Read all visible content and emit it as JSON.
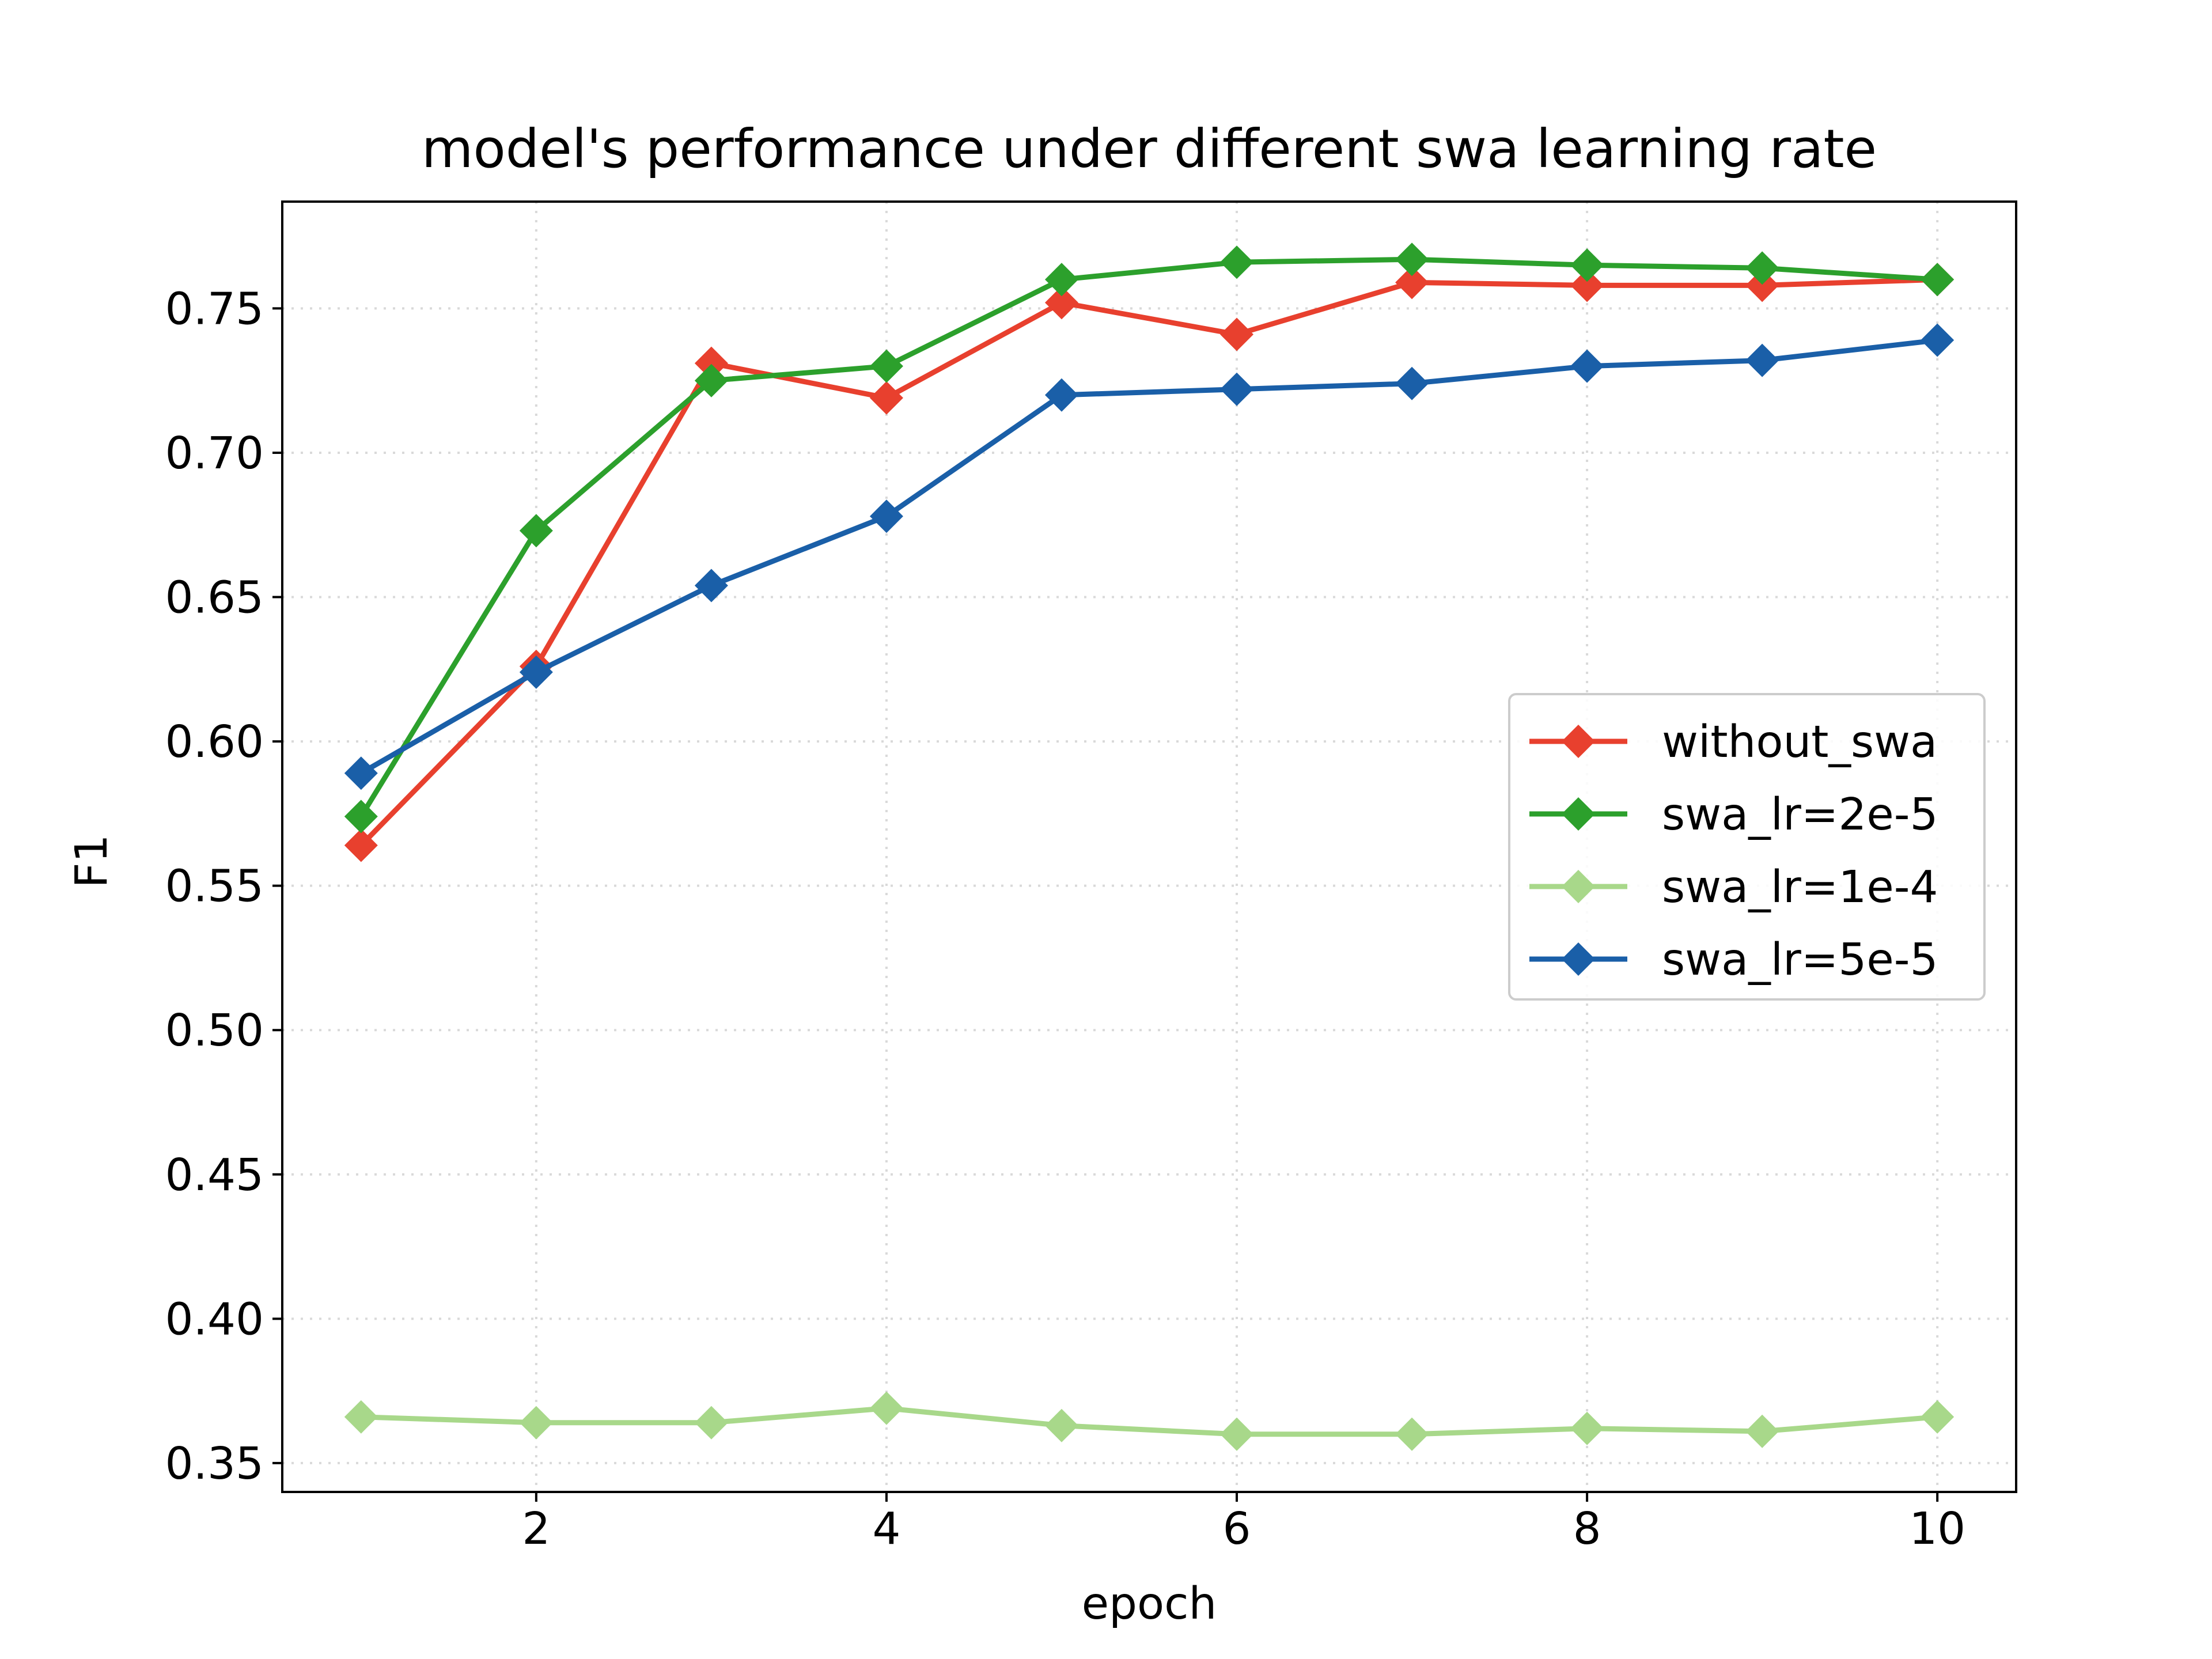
{
  "chart_data": {
    "type": "line",
    "title": "model's performance under different swa learning rate",
    "xlabel": "epoch",
    "ylabel": "F1",
    "xlim": [
      0.55,
      10.45
    ],
    "ylim": [
      0.34,
      0.787
    ],
    "xticks": [
      2,
      4,
      6,
      8,
      10
    ],
    "yticks": [
      0.35,
      0.4,
      0.45,
      0.5,
      0.55,
      0.6,
      0.65,
      0.7,
      0.75
    ],
    "grid": true,
    "legend_position": "center-right",
    "x": [
      1,
      2,
      3,
      4,
      5,
      6,
      7,
      8,
      9,
      10
    ],
    "series": [
      {
        "name": "without_swa",
        "color": "#e8402e",
        "marker": "diamond",
        "values": [
          0.564,
          0.626,
          0.731,
          0.719,
          0.752,
          0.741,
          0.759,
          0.758,
          0.758,
          0.76
        ]
      },
      {
        "name": "swa_lr=2e-5",
        "color": "#2ca02c",
        "marker": "diamond",
        "values": [
          0.574,
          0.673,
          0.725,
          0.73,
          0.76,
          0.766,
          0.767,
          0.765,
          0.764,
          0.76
        ]
      },
      {
        "name": "swa_lr=1e-4",
        "color": "#a8d88a",
        "marker": "diamond",
        "values": [
          0.366,
          0.364,
          0.364,
          0.369,
          0.363,
          0.36,
          0.36,
          0.362,
          0.361,
          0.366
        ]
      },
      {
        "name": "swa_lr=5e-5",
        "color": "#1a5fa8",
        "marker": "diamond",
        "values": [
          0.589,
          0.624,
          0.654,
          0.678,
          0.72,
          0.722,
          0.724,
          0.73,
          0.732,
          0.739
        ]
      }
    ]
  }
}
